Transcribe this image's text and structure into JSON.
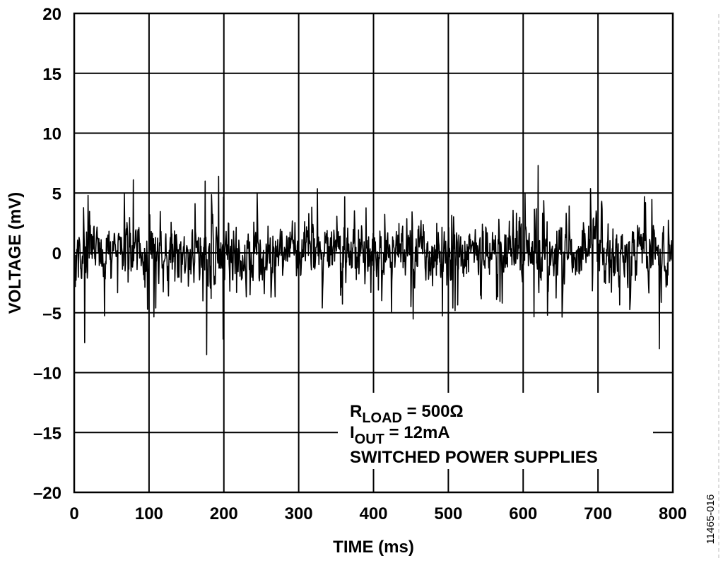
{
  "chart_data": {
    "type": "line",
    "title": "",
    "xlabel": "TIME (ms)",
    "ylabel": "VOLTAGE (mV)",
    "xlim": [
      0,
      800
    ],
    "ylim": [
      -20,
      20
    ],
    "x_ticks": [
      0,
      100,
      200,
      300,
      400,
      500,
      600,
      700,
      800
    ],
    "y_ticks": [
      20,
      15,
      10,
      5,
      0,
      -5,
      -10,
      -15,
      -20
    ],
    "x_tick_labels": [
      "0",
      "100",
      "200",
      "300",
      "400",
      "500",
      "600",
      "700",
      "800"
    ],
    "y_tick_labels": [
      "20",
      "15",
      "10",
      "5",
      "0",
      "–5",
      "–10",
      "–15",
      "–20"
    ],
    "grid": true,
    "legend": "none",
    "line_color": "#000000",
    "series": [
      {
        "x_start": 0,
        "x_end": 800,
        "x_step": 0.5,
        "noise_mean": 0,
        "noise_typical_range": [
          -5,
          5
        ],
        "noise_extremes": [
          -8.5,
          7.3
        ],
        "peaks": [
          {
            "x": 79,
            "y": 6.1
          },
          {
            "x": 175,
            "y": 6.0
          },
          {
            "x": 193,
            "y": 6.4
          },
          {
            "x": 620,
            "y": 7.3
          },
          {
            "x": 14,
            "y": -7.5
          },
          {
            "x": 177,
            "y": -8.5
          },
          {
            "x": 199,
            "y": -7.2
          },
          {
            "x": 782,
            "y": -8.0
          }
        ]
      }
    ],
    "annotation": {
      "r_main": "R",
      "r_sub": "LOAD",
      "r_value": " = 500Ω",
      "i_main": "I",
      "i_sub": "OUT",
      "i_value": " = 12mA",
      "line3": "SWITCHED POWER SUPPLIES"
    },
    "figure_id": "11465-016"
  }
}
